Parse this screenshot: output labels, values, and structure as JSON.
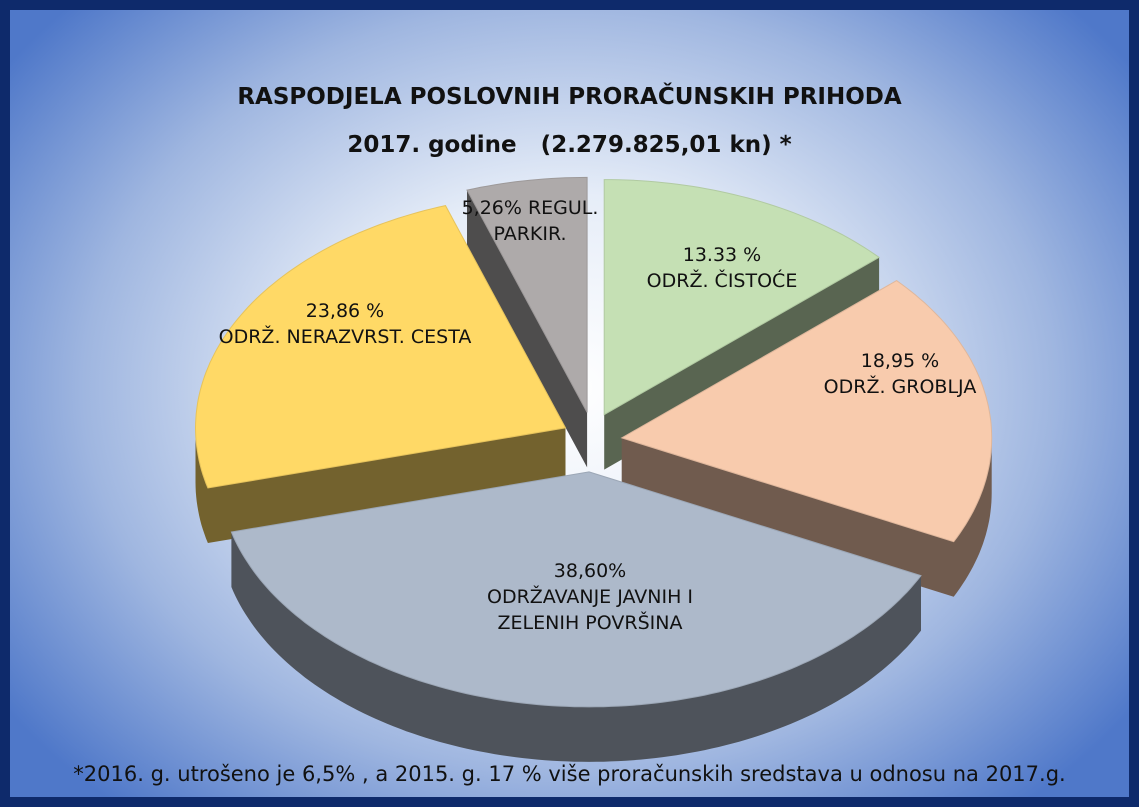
{
  "chart_data": {
    "type": "pie3d",
    "title": "RASPODJELA POSLOVNIH PRORAČUNSKIH PRIHODA",
    "subtitle": "2017. godine   (2.279.825,01 kn) *",
    "categories": [
      "ODRŽ. ČISTOĆE",
      "ODRŽ. GROBLJA",
      "ODRŽAVANJE JAVNIH I ZELENIH POVRŠINA",
      "ODRŽ. NERAZVRST. CESTA",
      "REGUL. PARKIR."
    ],
    "values": [
      13.33,
      18.95,
      38.6,
      23.86,
      5.26
    ],
    "value_labels": [
      "13.33 %",
      "18,95 %",
      "38,60%",
      "23,86 %",
      "5,26%"
    ],
    "colors": [
      "#c5e0b4",
      "#f8cbad",
      "#adb9ca",
      "#ffd966",
      "#aeaaaa"
    ],
    "footnote": "*2016. g. utrošeno je 6,5% , a 2015. g. 17 % više proračunskih sredstava u odnosu na 2017.g."
  }
}
